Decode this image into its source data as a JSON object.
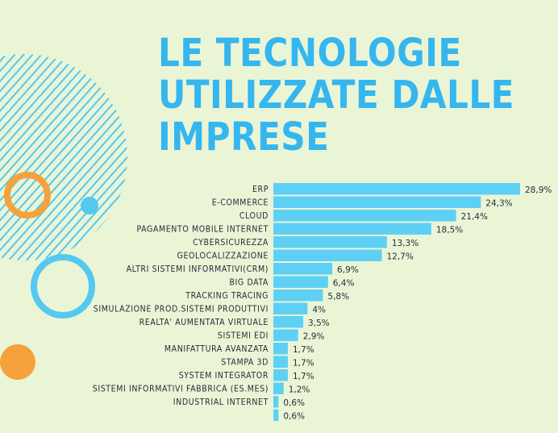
{
  "title_lines": [
    "LE TECNOLOGIE",
    "UTILIZZATE DALLE",
    "IMPRESE"
  ],
  "colors": {
    "background": "#eaf5d6",
    "title": "#35b6ef",
    "bar": "#5fd0f5",
    "orange": "#f5a23c",
    "stripe": "#55c8f0",
    "text": "#2a2a3a"
  },
  "chart_data": {
    "type": "bar",
    "orientation": "horizontal",
    "title": "LE TECNOLOGIE UTILIZZATE DALLE IMPRESE",
    "categories": [
      "ERP",
      "E-COMMERCE",
      "CLOUD",
      "PAGAMENTO MOBILE INTERNET",
      "CYBERSICUREZZA",
      "GEOLOCALIZZAZIONE",
      "ALTRI SISTEMI INFORMATIVI(CRM)",
      "BIG DATA",
      "TRACKING TRACING",
      "SIMULAZIONE PROD.SISTEMI PRODUTTIVI",
      "REALTA' AUMENTATA VIRTUALE",
      "SISTEMI EDI",
      "MANIFATTURA AVANZATA",
      "STAMPA 3D",
      "SYSTEM INTEGRATOR",
      "SISTEMI INFORMATIVI FABBRICA (ES.MES)",
      "INDUSTRIAL INTERNET",
      ""
    ],
    "values": [
      28.9,
      24.3,
      21.4,
      18.5,
      13.3,
      12.7,
      6.9,
      6.4,
      5.8,
      4,
      3.5,
      2.9,
      1.7,
      1.7,
      1.7,
      1.2,
      0.6,
      0.6
    ],
    "value_labels": [
      "28,9%",
      "24,3%",
      "21,4%",
      "18,5%",
      "13,3%",
      "12,7%",
      "6,9%",
      "6,4%",
      "5,8%",
      "4%",
      "3,5%",
      "2,9%",
      "1,7%",
      "1,7%",
      "1,7%",
      "1,2%",
      "0,6%",
      "0,6%"
    ],
    "xlim": [
      0,
      28.9
    ],
    "grid": false,
    "legend": "none"
  }
}
